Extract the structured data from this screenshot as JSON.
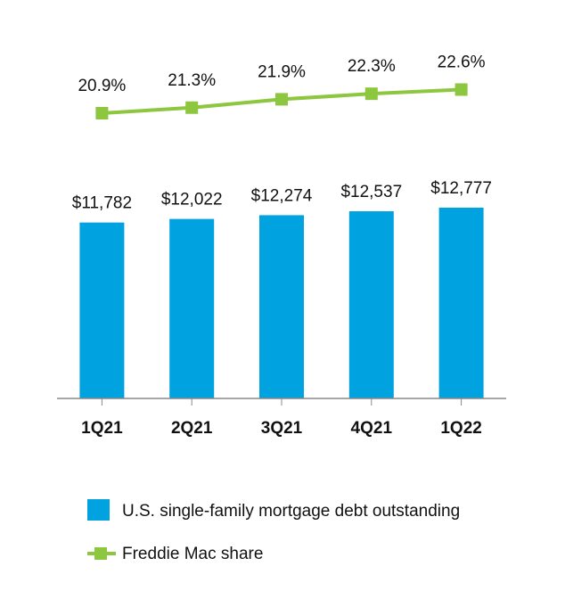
{
  "colors": {
    "bar": "#00A3E0",
    "line": "#8DC63F",
    "axis": "#888888",
    "text": "#111111"
  },
  "chart_data": {
    "type": "bar",
    "categories": [
      "1Q21",
      "2Q21",
      "3Q21",
      "4Q21",
      "1Q22"
    ],
    "series": [
      {
        "name": "U.S. single-family mortgage debt outstanding",
        "type": "bar",
        "values": [
          11782,
          12022,
          12274,
          12537,
          12777
        ],
        "labels": [
          "$11,782",
          "$12,022",
          "$12,274",
          "$12,537",
          "$12,777"
        ]
      },
      {
        "name": "Freddie Mac share",
        "type": "line",
        "values": [
          20.9,
          21.3,
          21.9,
          22.3,
          22.6
        ],
        "labels": [
          "20.9%",
          "21.3%",
          "21.9%",
          "22.3%",
          "22.6%"
        ]
      }
    ],
    "legend_position": "bottom",
    "grid": false
  },
  "legend": {
    "bar_label": "U.S. single-family mortgage debt outstanding",
    "line_label": "Freddie Mac share"
  }
}
